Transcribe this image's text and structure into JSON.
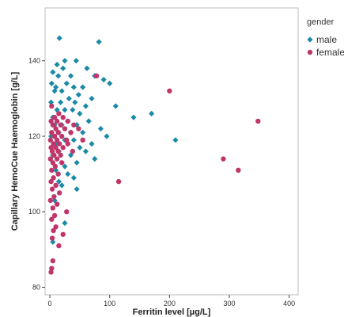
{
  "chart_data": {
    "type": "scatter",
    "xlabel": "Ferritin level [µg/L]",
    "ylabel": "Capillary HemoCue Haemoglobin [g/L]",
    "xlim": [
      -8,
      415
    ],
    "ylim": [
      78,
      154
    ],
    "x_ticks": [
      0,
      100,
      200,
      300,
      400
    ],
    "y_ticks": [
      80,
      100,
      120,
      140
    ],
    "grid": false,
    "legend_position": "top-right",
    "legend_title": "gender",
    "series": [
      {
        "name": "male",
        "marker": "diamond",
        "color": "#1c8aa6",
        "points": [
          [
            16,
            146
          ],
          [
            82,
            145
          ],
          [
            25,
            140
          ],
          [
            44,
            140
          ],
          [
            12,
            139
          ],
          [
            22,
            138
          ],
          [
            62,
            138
          ],
          [
            5,
            137
          ],
          [
            14,
            136
          ],
          [
            35,
            136
          ],
          [
            75,
            136
          ],
          [
            90,
            135
          ],
          [
            100,
            134
          ],
          [
            3,
            134
          ],
          [
            28,
            134
          ],
          [
            10,
            133
          ],
          [
            40,
            133
          ],
          [
            55,
            133
          ],
          [
            8,
            132
          ],
          [
            20,
            132
          ],
          [
            48,
            131
          ],
          [
            32,
            130
          ],
          [
            70,
            130
          ],
          [
            2,
            129
          ],
          [
            18,
            129
          ],
          [
            42,
            129
          ],
          [
            60,
            128
          ],
          [
            110,
            128
          ],
          [
            12,
            127
          ],
          [
            25,
            127
          ],
          [
            38,
            127
          ],
          [
            50,
            126
          ],
          [
            170,
            126
          ],
          [
            140,
            125
          ],
          [
            5,
            125
          ],
          [
            30,
            124
          ],
          [
            65,
            124
          ],
          [
            8,
            123
          ],
          [
            20,
            123
          ],
          [
            45,
            123
          ],
          [
            85,
            122
          ],
          [
            15,
            121
          ],
          [
            35,
            121
          ],
          [
            55,
            121
          ],
          [
            95,
            120
          ],
          [
            2,
            120
          ],
          [
            25,
            119
          ],
          [
            40,
            119
          ],
          [
            210,
            119
          ],
          [
            10,
            118
          ],
          [
            30,
            118
          ],
          [
            70,
            118
          ],
          [
            50,
            117
          ],
          [
            15,
            116
          ],
          [
            60,
            116
          ],
          [
            5,
            115
          ],
          [
            35,
            115
          ],
          [
            75,
            114
          ],
          [
            20,
            113
          ],
          [
            45,
            113
          ],
          [
            25,
            112
          ],
          [
            10,
            111
          ],
          [
            30,
            110
          ],
          [
            40,
            109
          ],
          [
            15,
            108
          ],
          [
            20,
            107
          ],
          [
            45,
            106
          ],
          [
            8,
            103
          ],
          [
            25,
            97
          ],
          [
            5,
            92
          ]
        ]
      },
      {
        "name": "female",
        "marker": "circle",
        "color": "#c1366a",
        "points": [
          [
            78,
            136
          ],
          [
            200,
            132
          ],
          [
            348,
            124
          ],
          [
            3,
            128
          ],
          [
            15,
            126
          ],
          [
            8,
            125
          ],
          [
            22,
            125
          ],
          [
            2,
            124
          ],
          [
            12,
            124
          ],
          [
            30,
            124
          ],
          [
            5,
            123
          ],
          [
            18,
            123
          ],
          [
            40,
            123
          ],
          [
            10,
            122
          ],
          [
            25,
            122
          ],
          [
            48,
            122
          ],
          [
            3,
            121
          ],
          [
            14,
            121
          ],
          [
            35,
            121
          ],
          [
            8,
            120
          ],
          [
            20,
            120
          ],
          [
            1,
            119
          ],
          [
            12,
            119
          ],
          [
            28,
            119
          ],
          [
            55,
            119
          ],
          [
            6,
            118
          ],
          [
            16,
            118
          ],
          [
            30,
            118
          ],
          [
            2,
            117
          ],
          [
            10,
            117
          ],
          [
            22,
            117
          ],
          [
            4,
            116
          ],
          [
            14,
            116
          ],
          [
            38,
            116
          ],
          [
            7,
            115
          ],
          [
            18,
            115
          ],
          [
            1,
            114
          ],
          [
            12,
            114
          ],
          [
            290,
            114
          ],
          [
            5,
            113
          ],
          [
            20,
            113
          ],
          [
            9,
            112
          ],
          [
            3,
            111
          ],
          [
            315,
            111
          ],
          [
            14,
            110
          ],
          [
            6,
            109
          ],
          [
            2,
            108
          ],
          [
            115,
            108
          ],
          [
            10,
            107
          ],
          [
            4,
            106
          ],
          [
            16,
            105
          ],
          [
            7,
            104
          ],
          [
            1,
            103
          ],
          [
            12,
            102
          ],
          [
            5,
            101
          ],
          [
            28,
            100
          ],
          [
            8,
            99
          ],
          [
            3,
            98
          ],
          [
            10,
            96
          ],
          [
            6,
            95
          ],
          [
            22,
            94
          ],
          [
            4,
            93
          ],
          [
            15,
            91
          ],
          [
            5,
            87
          ],
          [
            3,
            85
          ],
          [
            2,
            84
          ]
        ]
      }
    ]
  }
}
